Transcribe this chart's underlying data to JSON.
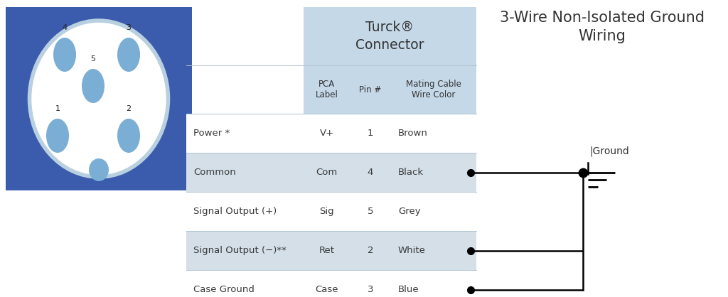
{
  "title": "3-Wire Non-Isolated Ground\nWiring",
  "title_fontsize": 15,
  "bg_color": "#ffffff",
  "table_header_bg": "#c5d8e8",
  "table_row_odd_bg": "#ffffff",
  "table_row_even_bg": "#d4dfe8",
  "connector_bg": "#3b5bac",
  "connector_ellipse_border": "#b8d0e0",
  "connector_ellipse_inner": "#ffffff",
  "pin_color": "#7aaed4",
  "turck_text": "Turck®\nConnector",
  "subheader_cols": [
    "PCA\nLabel",
    "Pin #",
    "Mating Cable\nWire Color"
  ],
  "table_rows": [
    [
      "Power *",
      "V+",
      "1",
      "Brown"
    ],
    [
      "Common",
      "Com",
      "4",
      "Black"
    ],
    [
      "Signal Output (+)",
      "Sig",
      "5",
      "Grey"
    ],
    [
      "Signal Output (−)**",
      "Ret",
      "2",
      "White"
    ],
    [
      "Case Ground",
      "Case",
      "3",
      "Blue"
    ]
  ],
  "wired_rows": [
    1,
    3,
    4
  ],
  "row_colors": [
    "#ffffff",
    "#d4dfe8",
    "#ffffff",
    "#d4dfe8",
    "#ffffff"
  ],
  "ground_label": "|Ground",
  "text_color": "#3a3a3a",
  "wire_color": "#000000"
}
